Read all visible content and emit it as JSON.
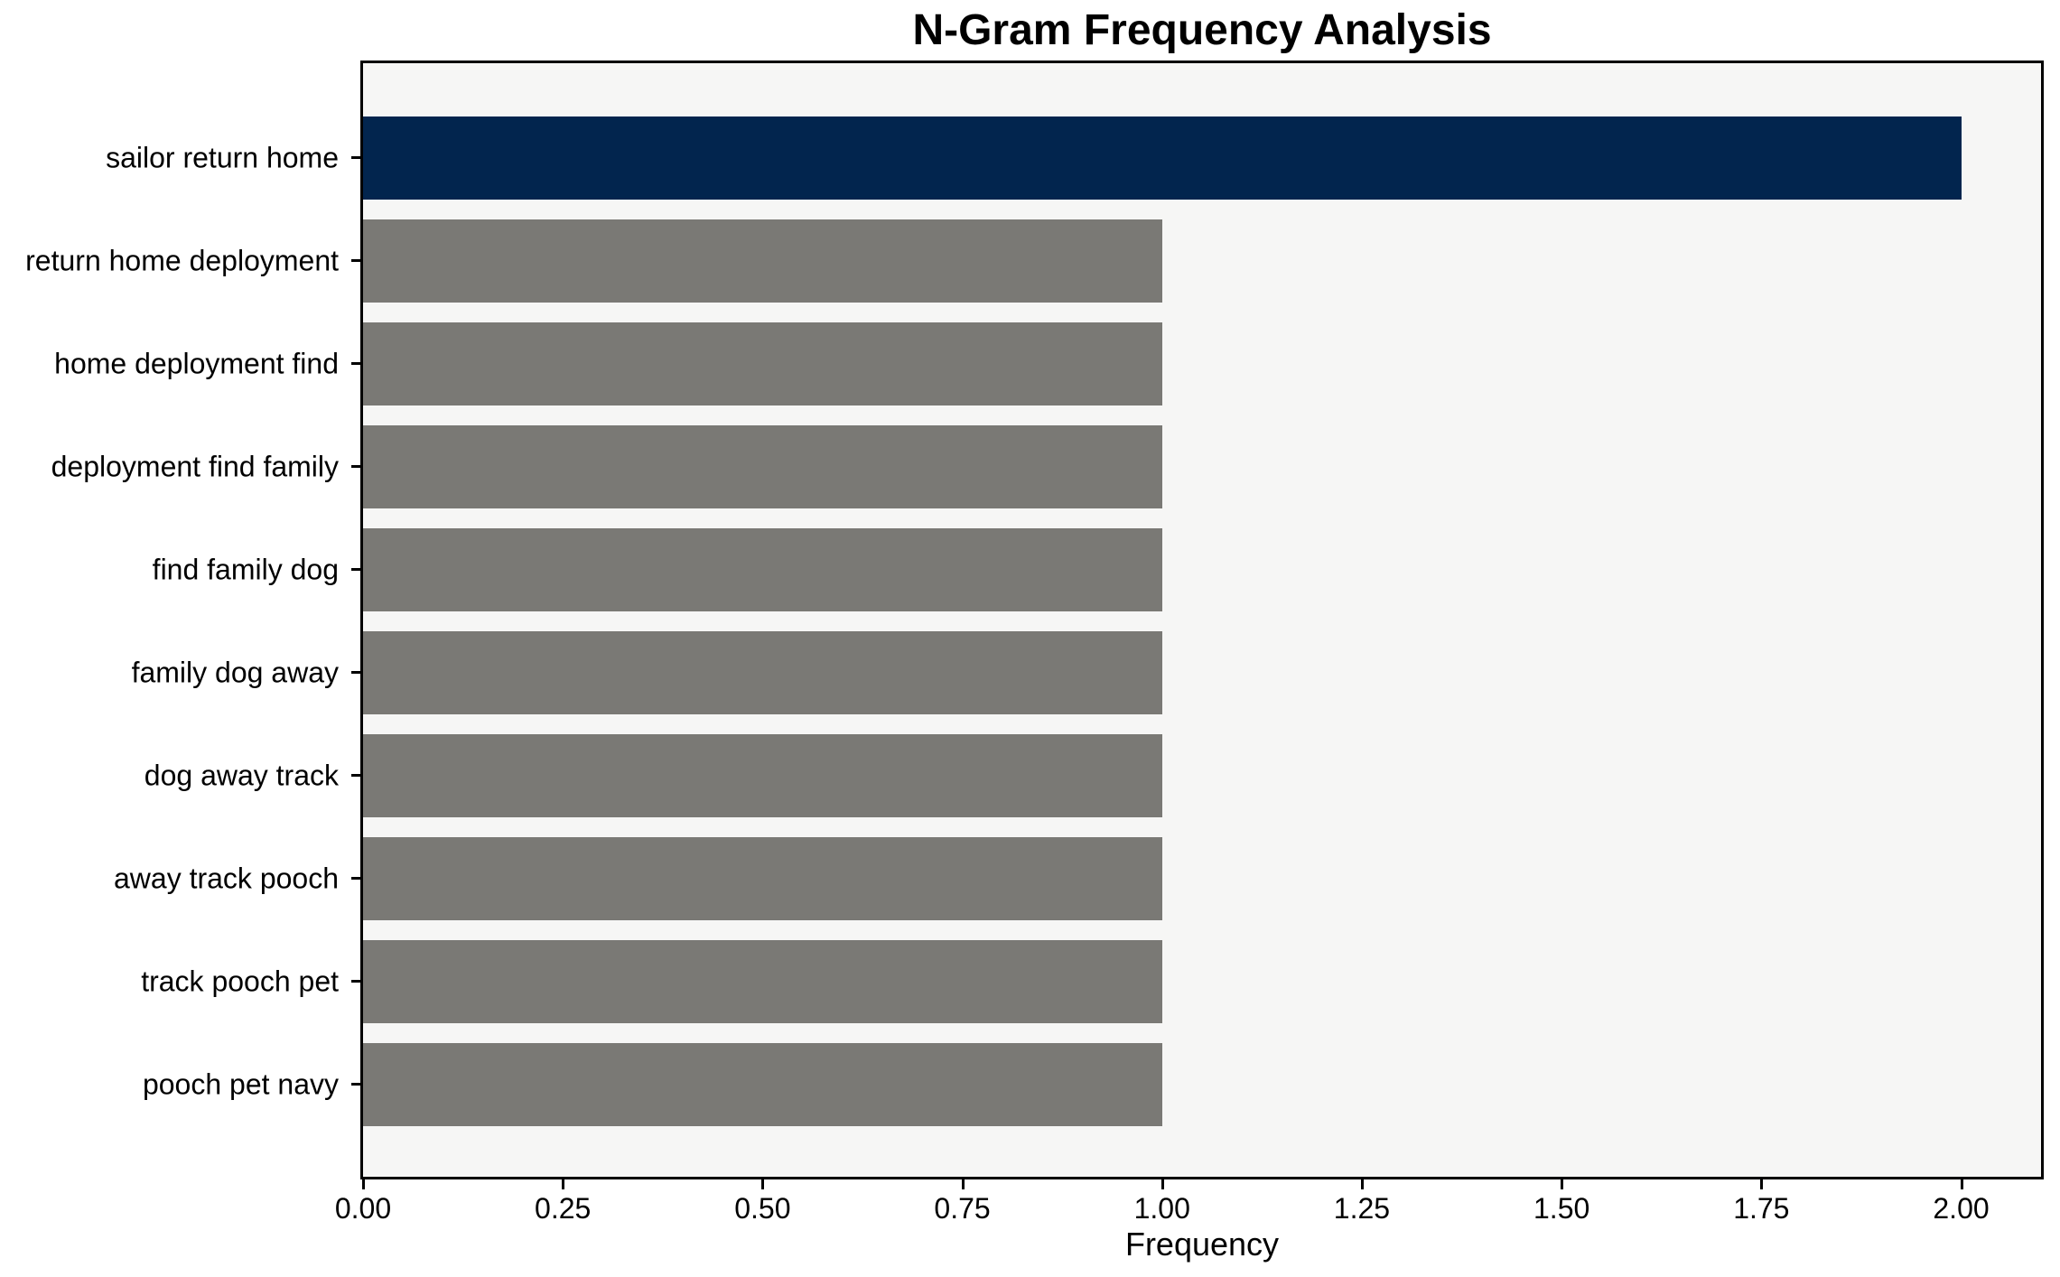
{
  "chart_data": {
    "type": "bar",
    "orientation": "horizontal",
    "title": "N-Gram Frequency Analysis",
    "xlabel": "Frequency",
    "ylabel": "",
    "categories": [
      "sailor return home",
      "return home deployment",
      "home deployment find",
      "deployment find family",
      "find family dog",
      "family dog away",
      "dog away track",
      "away track pooch",
      "track pooch pet",
      "pooch pet navy"
    ],
    "values": [
      2.0,
      1.0,
      1.0,
      1.0,
      1.0,
      1.0,
      1.0,
      1.0,
      1.0,
      1.0
    ],
    "bar_colors": [
      "#02254e",
      "#7a7975",
      "#7a7975",
      "#7a7975",
      "#7a7975",
      "#7a7975",
      "#7a7975",
      "#7a7975",
      "#7a7975",
      "#7a7975"
    ],
    "xlim": [
      0,
      2.1
    ],
    "x_tick_values": [
      0.0,
      0.25,
      0.5,
      0.75,
      1.0,
      1.25,
      1.5,
      1.75,
      2.0
    ],
    "x_tick_labels": [
      "0.00",
      "0.25",
      "0.50",
      "0.75",
      "1.00",
      "1.25",
      "1.50",
      "1.75",
      "2.00"
    ],
    "grid": false,
    "legend": "none",
    "colors": {
      "highlight_bar": "#02254e",
      "default_bar": "#7a7975",
      "plot_background": "#f6f6f5",
      "figure_background": "#ffffff",
      "spine": "#000000",
      "text": "#000000"
    }
  }
}
